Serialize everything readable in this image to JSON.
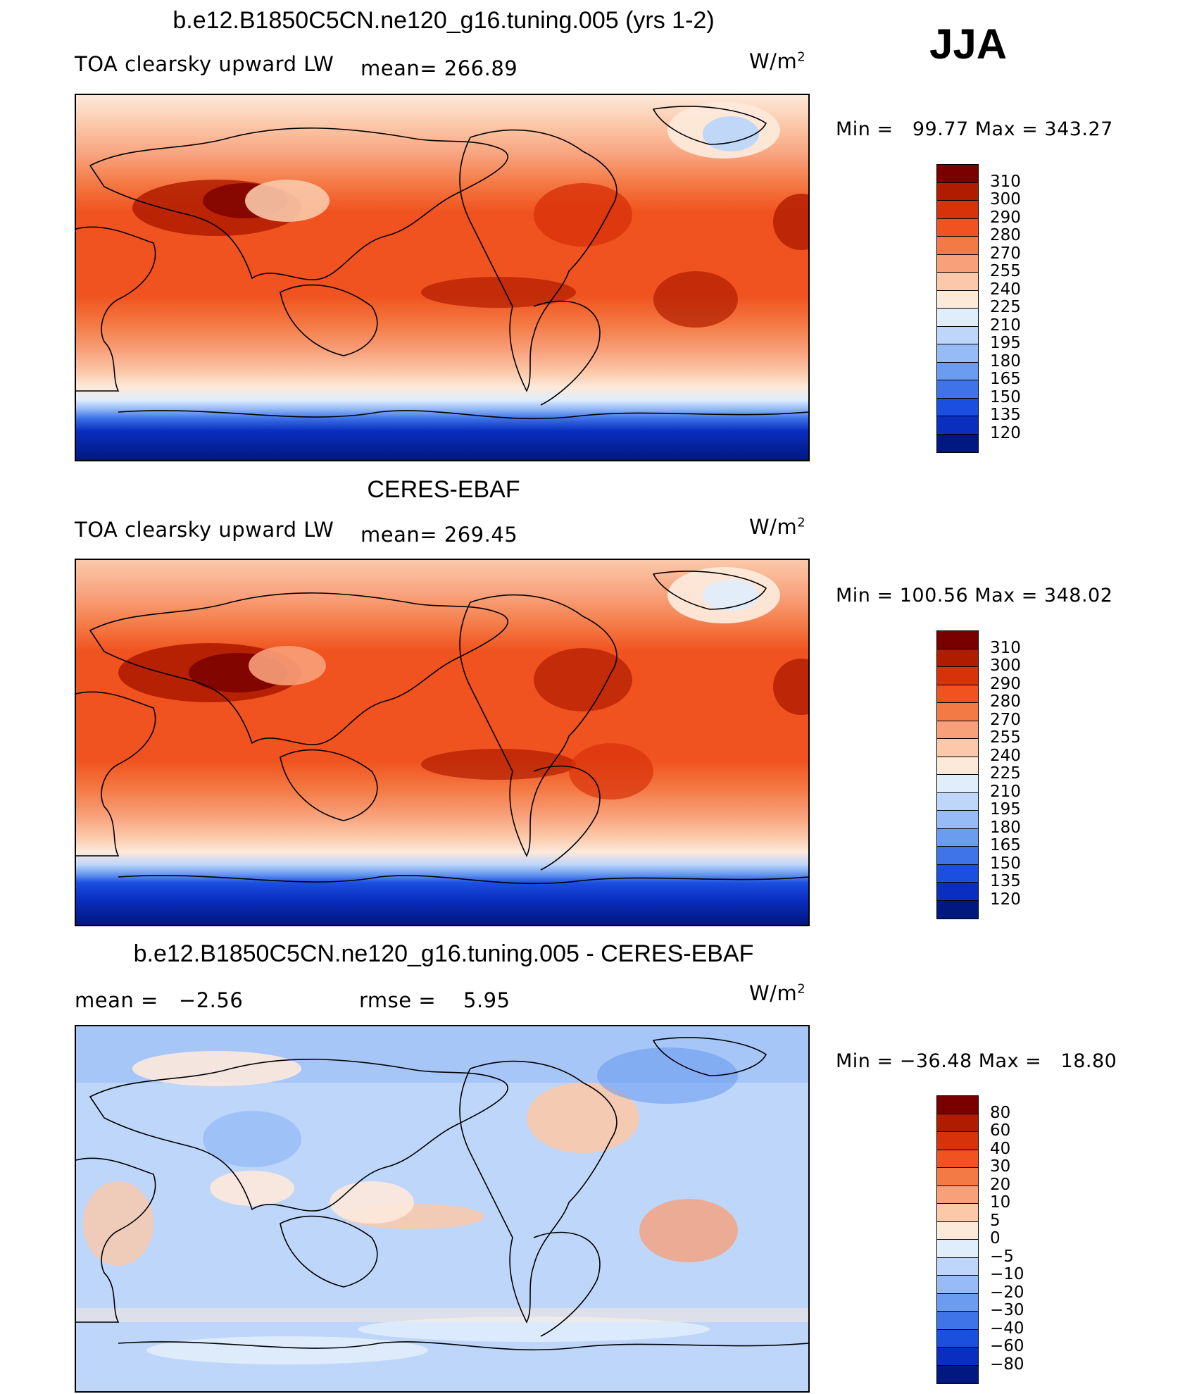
{
  "season": "JJA",
  "units_base": "W/m",
  "units_exp": "2",
  "panel1": {
    "title": "b.e12.B1850C5CN.ne120_g16.tuning.005 (yrs 1-2)",
    "field": "TOA clearsky upward LW",
    "mean_label": "mean=",
    "mean_value": "266.89",
    "min_label": "Min =",
    "min_value": "99.77",
    "max_label": "Max =",
    "max_value": "343.27"
  },
  "panel2": {
    "title": "CERES-EBAF",
    "field": "TOA clearsky upward LW",
    "mean_label": "mean=",
    "mean_value": "269.45",
    "min_label": "Min =",
    "min_value": "100.56",
    "max_label": "Max =",
    "max_value": "348.02"
  },
  "panel3": {
    "title": "b.e12.B1850C5CN.ne120_g16.tuning.005 - CERES-EBAF",
    "mean_label": "mean =",
    "mean_value": "−2.56",
    "rmse_label": "rmse =",
    "rmse_value": "5.95",
    "min_label": "Min =",
    "min_value": "−36.48",
    "max_label": "Max =",
    "max_value": "18.80"
  },
  "colorbar_abs": {
    "levels": [
      "310",
      "300",
      "290",
      "280",
      "270",
      "255",
      "240",
      "225",
      "210",
      "195",
      "180",
      "165",
      "150",
      "135",
      "120"
    ],
    "colors": [
      "#7a0000",
      "#b01c00",
      "#d8320a",
      "#f0531f",
      "#f47a45",
      "#f8a07a",
      "#fbc9aa",
      "#fde9da",
      "#e0edfb",
      "#bdd6fa",
      "#96bbf6",
      "#6c9cf0",
      "#3f74e8",
      "#1b4fe0",
      "#0a2ec0",
      "#001880"
    ]
  },
  "colorbar_diff": {
    "levels": [
      "80",
      "60",
      "40",
      "30",
      "20",
      "10",
      "5",
      "0",
      "−5",
      "−10",
      "−20",
      "−30",
      "−40",
      "−60",
      "−80"
    ],
    "colors": [
      "#7a0000",
      "#b01c00",
      "#d8320a",
      "#f0531f",
      "#f47a45",
      "#f8a07a",
      "#fbc9aa",
      "#fde9da",
      "#e0edfb",
      "#bdd6fa",
      "#96bbf6",
      "#6c9cf0",
      "#3f74e8",
      "#1b4fe0",
      "#0a2ec0",
      "#001880"
    ]
  }
}
